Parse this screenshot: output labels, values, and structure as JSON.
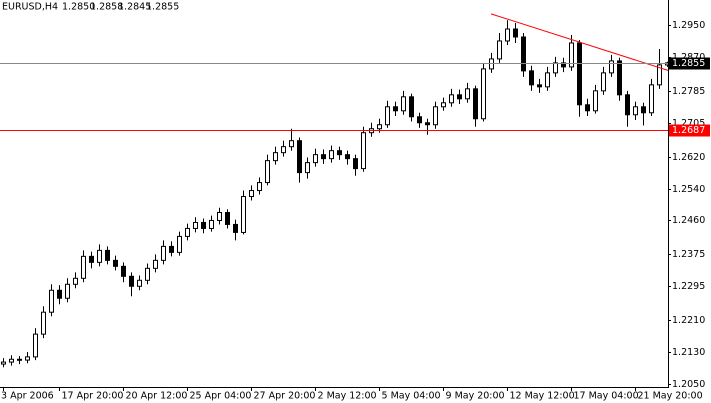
{
  "chart_data": {
    "type": "candlestick",
    "symbol": "EURUSD,H4",
    "ohlc_text": [
      "1.2850",
      "1.2858",
      "1.2845",
      "1.2855"
    ],
    "categories": [
      "3 Apr 2006",
      null,
      null,
      null,
      null,
      null,
      null,
      "17 Apr 20:00",
      null,
      null,
      null,
      null,
      null,
      null,
      null,
      "20 Apr 12:00",
      null,
      null,
      null,
      null,
      null,
      null,
      null,
      "25 Apr 04:00",
      null,
      null,
      null,
      null,
      null,
      null,
      null,
      "27 Apr 20:00",
      null,
      null,
      null,
      null,
      null,
      null,
      null,
      "2 May 12:00",
      null,
      null,
      null,
      null,
      null,
      null,
      null,
      "5 May 04:00",
      null,
      null,
      null,
      null,
      null,
      null,
      null,
      "9 May 20:00",
      null,
      null,
      null,
      null,
      null,
      null,
      null,
      "12 May 12:00",
      null,
      null,
      null,
      null,
      null,
      null,
      null,
      "17 May 04:00",
      null,
      null,
      null,
      null,
      null,
      null,
      null,
      "21 May 20:00",
      null,
      null,
      null,
      null
    ],
    "open": [
      1.21,
      1.2105,
      1.2112,
      1.211,
      1.2118,
      1.2175,
      1.223,
      1.2285,
      1.2265,
      1.23,
      1.2315,
      1.237,
      1.2355,
      1.2385,
      1.236,
      1.2345,
      1.232,
      1.2295,
      1.231,
      1.234,
      1.236,
      1.2395,
      1.238,
      1.242,
      1.244,
      1.2455,
      1.244,
      1.246,
      1.248,
      1.245,
      1.243,
      1.252,
      1.2535,
      1.2555,
      1.261,
      1.263,
      1.2645,
      1.266,
      1.258,
      1.2605,
      1.2625,
      1.2615,
      1.2635,
      1.2625,
      1.2615,
      1.259,
      1.268,
      1.269,
      1.27,
      1.2745,
      1.2735,
      1.277,
      1.272,
      1.2705,
      1.27,
      1.2745,
      1.2755,
      1.2775,
      1.2765,
      1.279,
      1.2715,
      1.284,
      1.2865,
      1.291,
      1.294,
      1.292,
      1.2835,
      1.28,
      1.2795,
      1.283,
      1.2855,
      1.2845,
      1.2905,
      1.275,
      1.2735,
      1.2785,
      1.283,
      1.286,
      1.2775,
      1.2725,
      1.2745,
      1.273,
      1.28,
      1.285
    ],
    "high": [
      1.2115,
      1.2122,
      1.212,
      1.213,
      1.219,
      1.2245,
      1.23,
      1.2298,
      1.2315,
      1.233,
      1.2385,
      1.2382,
      1.24,
      1.2395,
      1.2372,
      1.2355,
      1.233,
      1.2322,
      1.2352,
      1.2375,
      1.241,
      1.2408,
      1.2432,
      1.2452,
      1.2468,
      1.2465,
      1.2472,
      1.2492,
      1.2488,
      1.2462,
      1.2535,
      1.2548,
      1.2568,
      1.2625,
      1.2645,
      1.266,
      1.269,
      1.2668,
      1.2618,
      1.264,
      1.2638,
      1.2648,
      1.2645,
      1.2635,
      1.2625,
      1.2695,
      1.2705,
      1.2715,
      1.276,
      1.2758,
      1.2785,
      1.2778,
      1.273,
      1.2715,
      1.2758,
      1.2768,
      1.279,
      1.2788,
      1.2805,
      1.2798,
      1.2855,
      1.288,
      1.293,
      1.2962,
      1.2955,
      1.293,
      1.2848,
      1.2815,
      1.2845,
      1.287,
      1.2868,
      1.2925,
      1.2912,
      1.2765,
      1.28,
      1.2845,
      1.2875,
      1.2868,
      1.2785,
      1.2758,
      1.2755,
      1.2815,
      1.289,
      1.2858
    ],
    "low": [
      1.2092,
      1.2096,
      1.21,
      1.2102,
      1.211,
      1.2165,
      1.222,
      1.225,
      1.2255,
      1.229,
      1.2305,
      1.234,
      1.2345,
      1.235,
      1.2335,
      1.2305,
      1.227,
      1.2285,
      1.23,
      1.233,
      1.235,
      1.237,
      1.2372,
      1.241,
      1.243,
      1.2428,
      1.2432,
      1.245,
      1.244,
      1.241,
      1.2425,
      1.251,
      1.2525,
      1.2548,
      1.26,
      1.262,
      1.2635,
      1.2555,
      1.2565,
      1.2595,
      1.2602,
      1.2605,
      1.2612,
      1.26,
      1.2572,
      1.2582,
      1.267,
      1.268,
      1.2692,
      1.2722,
      1.2725,
      1.2708,
      1.2692,
      1.2675,
      1.269,
      1.2735,
      1.2745,
      1.2752,
      1.2755,
      1.2695,
      1.2708,
      1.283,
      1.2855,
      1.29,
      1.2905,
      1.282,
      1.2785,
      1.278,
      1.2785,
      1.282,
      1.2832,
      1.2835,
      1.272,
      1.2722,
      1.2728,
      1.2775,
      1.282,
      1.276,
      1.2695,
      1.2712,
      1.2698,
      1.2722,
      1.279,
      1.2845
    ],
    "close": [
      1.2105,
      1.2112,
      1.211,
      1.2118,
      1.2175,
      1.223,
      1.2285,
      1.2265,
      1.23,
      1.2315,
      1.237,
      1.2355,
      1.2385,
      1.236,
      1.2345,
      1.232,
      1.2295,
      1.231,
      1.234,
      1.236,
      1.2395,
      1.238,
      1.242,
      1.244,
      1.2455,
      1.244,
      1.246,
      1.248,
      1.245,
      1.243,
      1.252,
      1.2535,
      1.2555,
      1.261,
      1.263,
      1.2645,
      1.266,
      1.258,
      1.2605,
      1.2625,
      1.2615,
      1.2635,
      1.2625,
      1.2615,
      1.259,
      1.268,
      1.269,
      1.27,
      1.2745,
      1.2735,
      1.277,
      1.272,
      1.2705,
      1.27,
      1.2745,
      1.2755,
      1.2775,
      1.2765,
      1.279,
      1.2715,
      1.284,
      1.2865,
      1.291,
      1.294,
      1.292,
      1.2835,
      1.28,
      1.2795,
      1.283,
      1.2855,
      1.2845,
      1.2905,
      1.275,
      1.2735,
      1.2785,
      1.283,
      1.286,
      1.2775,
      1.2725,
      1.2745,
      1.273,
      1.28,
      1.285,
      1.2855
    ],
    "up_color": "#ffffff",
    "down_color": "#000000",
    "ylim": [
      1.20425,
      1.30127
    ],
    "yticks": [
      {
        "value": 1.295,
        "label": "1.2950"
      },
      {
        "value": 1.287,
        "label": "1.2870"
      },
      {
        "value": 1.2785,
        "label": "1.2785"
      },
      {
        "value": 1.2705,
        "label": "1.2705"
      },
      {
        "value": 1.262,
        "label": "1.2620"
      },
      {
        "value": 1.254,
        "label": "1.2540"
      },
      {
        "value": 1.246,
        "label": "1.2460"
      },
      {
        "value": 1.2375,
        "label": "1.2375"
      },
      {
        "value": 1.2295,
        "label": "1.2295"
      },
      {
        "value": 1.221,
        "label": "1.2210"
      },
      {
        "value": 1.213,
        "label": "1.2130"
      },
      {
        "value": 1.205,
        "label": "1.2050"
      }
    ],
    "hlines": [
      {
        "value": 1.2687,
        "label": "1.2687",
        "color": "#ff0000"
      },
      {
        "value": 1.2855,
        "label": "1.2855",
        "color": "#000000"
      }
    ],
    "trendline": {
      "color": "#ff0000",
      "points": [
        [
          61,
          1.2978
        ],
        [
          83,
          1.2837
        ]
      ]
    }
  }
}
